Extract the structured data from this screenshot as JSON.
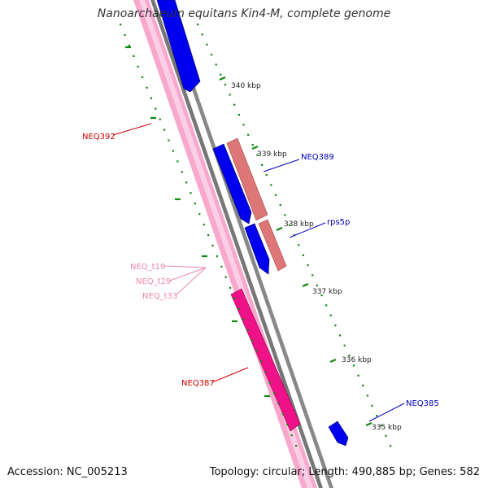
{
  "title": "Nanoarchaeum equitans Kin4-M, complete genome",
  "footer": {
    "accession": "Accession: NC_005213",
    "summary": "Topology: circular; Length: 490,885 bp; Genes: 582"
  },
  "colors": {
    "forward_cds": "#0000ee",
    "reverse_cds": "#dd1155",
    "rna": "#ee88bb",
    "rrna": "#cc5566",
    "tick": "#118811",
    "backbone": "#777777",
    "label_red": "#cc0000",
    "label_blue": "#0000bb",
    "label_pink": "#ee88aa"
  },
  "ticks": [
    {
      "label": "340 kbp"
    },
    {
      "label": "339 kbp"
    },
    {
      "label": "338 kbp"
    },
    {
      "label": "337 kbp"
    },
    {
      "label": "336 kbp"
    },
    {
      "label": "335 kbp"
    }
  ],
  "features": [
    {
      "label": "NEQ392",
      "color_key": "label_red"
    },
    {
      "label": "NEQ389",
      "color_key": "label_blue"
    },
    {
      "label": "rps5p",
      "color_key": "label_blue"
    },
    {
      "label": "NEQ_t19",
      "color_key": "label_pink"
    },
    {
      "label": "NEQ_t29",
      "color_key": "label_pink"
    },
    {
      "label": "NEQ_t33",
      "color_key": "label_pink"
    },
    {
      "label": "NEQ387",
      "color_key": "label_red"
    },
    {
      "label": "NEQ385",
      "color_key": "label_blue"
    }
  ]
}
